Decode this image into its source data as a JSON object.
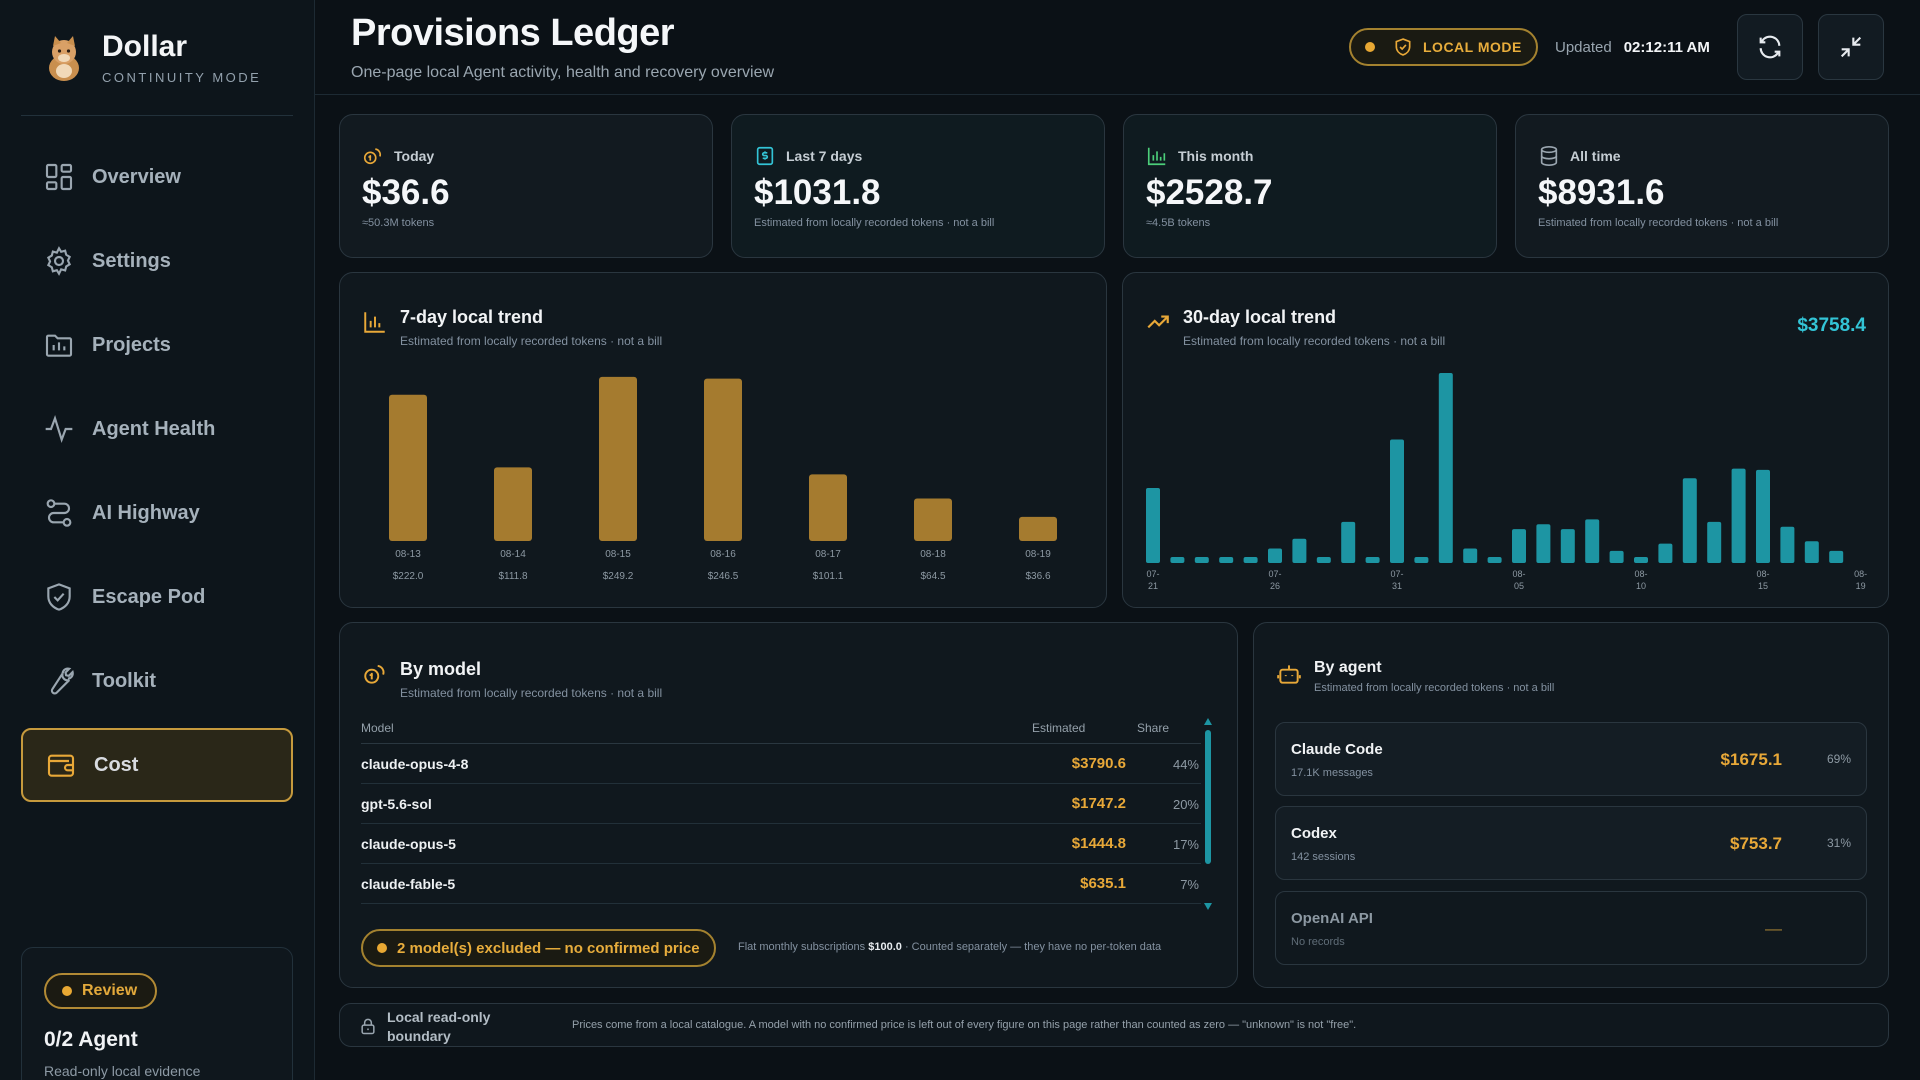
{
  "brand": {
    "title": "Dollar",
    "subtitle": "CONTINUITY MODE"
  },
  "nav": [
    {
      "label": "Overview",
      "icon": "grid-icon"
    },
    {
      "label": "Settings",
      "icon": "gear-icon"
    },
    {
      "label": "Projects",
      "icon": "folder-icon"
    },
    {
      "label": "Agent Health",
      "icon": "pulse-icon"
    },
    {
      "label": "AI Highway",
      "icon": "route-icon"
    },
    {
      "label": "Escape Pod",
      "icon": "shield-icon"
    },
    {
      "label": "Toolkit",
      "icon": "wrench-icon"
    },
    {
      "label": "Cost",
      "icon": "wallet-icon",
      "active": true
    }
  ],
  "review": {
    "badge": "Review",
    "title": "0/2 Agent",
    "subtitle": "Read-only local evidence"
  },
  "header": {
    "title": "Provisions Ledger",
    "subtitle": "One-page local Agent activity, health and recovery overview",
    "mode": "LOCAL MODE",
    "updated_label": "Updated",
    "updated_time": "02:12:11 AM"
  },
  "stats": [
    {
      "label": "Today",
      "value": "$36.6",
      "note": "≈50.3M tokens",
      "accent": "#e8a838"
    },
    {
      "label": "Last 7 days",
      "value": "$1031.8",
      "note": "Estimated from locally recorded tokens · not a bill",
      "accent": "#33c4d6"
    },
    {
      "label": "This month",
      "value": "$2528.7",
      "note": "≈4.5B tokens",
      "accent": "#4ccf7a"
    },
    {
      "label": "All time",
      "value": "$8931.6",
      "note": "Estimated from locally recorded tokens · not a bill",
      "accent": "#9aa6b0"
    }
  ],
  "trend7": {
    "title": "7-day local trend",
    "subtitle": "Estimated from locally recorded tokens · not a bill"
  },
  "trend30": {
    "title": "30-day local trend",
    "subtitle": "Estimated from locally recorded tokens · not a bill",
    "total": "$3758.4"
  },
  "chart_data": [
    {
      "type": "bar",
      "categories": [
        "08-13",
        "08-14",
        "08-15",
        "08-16",
        "08-17",
        "08-18",
        "08-19"
      ],
      "values": [
        222.0,
        111.8,
        249.2,
        246.5,
        101.1,
        64.5,
        36.6
      ],
      "value_labels": [
        "$222.0",
        "$111.8",
        "$249.2",
        "$246.5",
        "$101.1",
        "$64.5",
        "$36.6"
      ],
      "ylim": [
        0,
        255
      ],
      "color": "#a57b2f"
    },
    {
      "type": "bar",
      "x": [
        "07-21",
        "07-22",
        "07-23",
        "07-24",
        "07-25",
        "07-26",
        "07-27",
        "07-28",
        "07-29",
        "07-30",
        "07-31",
        "08-01",
        "08-02",
        "08-03",
        "08-04",
        "08-05",
        "08-06",
        "08-07",
        "08-08",
        "08-09",
        "08-10",
        "08-11",
        "08-12",
        "08-13",
        "08-14",
        "08-15",
        "08-16",
        "08-17",
        "08-18",
        "08-19"
      ],
      "values": [
        62,
        5,
        5,
        5,
        5,
        12,
        20,
        5,
        34,
        5,
        102,
        5,
        157,
        12,
        5,
        28,
        32,
        28,
        36,
        10,
        5,
        16,
        70,
        34,
        78,
        77,
        30,
        18,
        10,
        0
      ],
      "tick_labels": [
        {
          "index": 0,
          "top": "07-",
          "bottom": "21"
        },
        {
          "index": 5,
          "top": "07-",
          "bottom": "26"
        },
        {
          "index": 10,
          "top": "07-",
          "bottom": "31"
        },
        {
          "index": 15,
          "top": "08-",
          "bottom": "05"
        },
        {
          "index": 20,
          "top": "08-",
          "bottom": "10"
        },
        {
          "index": 25,
          "top": "08-",
          "bottom": "15"
        },
        {
          "index": 29,
          "top": "08-",
          "bottom": "19"
        }
      ],
      "color": "#1d95a3"
    }
  ],
  "by_model": {
    "title": "By model",
    "subtitle": "Estimated from locally recorded tokens · not a bill",
    "col_model": "Model",
    "col_estimated": "Estimated",
    "col_share": "Share",
    "rows": [
      {
        "model": "claude-opus-4-8",
        "estimated": "$3790.6",
        "share": "44%"
      },
      {
        "model": "gpt-5.6-sol",
        "estimated": "$1747.2",
        "share": "20%"
      },
      {
        "model": "claude-opus-5",
        "estimated": "$1444.8",
        "share": "17%"
      },
      {
        "model": "claude-fable-5",
        "estimated": "$635.1",
        "share": "7%"
      }
    ],
    "excluded": "2 model(s) excluded — no confirmed price",
    "flat_prefix": "Flat monthly subscriptions",
    "flat_amount": "$100.0",
    "flat_suffix": "· Counted separately — they have no per-token data"
  },
  "by_agent": {
    "title": "By agent",
    "subtitle": "Estimated from locally recorded tokens · not a bill",
    "rows": [
      {
        "name": "Claude Code",
        "detail": "17.1K messages",
        "value": "$1675.1",
        "share": "69%"
      },
      {
        "name": "Codex",
        "detail": "142 sessions",
        "value": "$753.7",
        "share": "31%"
      },
      {
        "name": "OpenAI API",
        "detail": "No records",
        "value": "—",
        "share": ""
      }
    ]
  },
  "boundary": {
    "title": "Local read-only boundary",
    "text": "Prices come from a local catalogue. A model with no confirmed price is left out of every figure on this page rather than counted as zero — \"unknown\" is not \"free\"."
  }
}
